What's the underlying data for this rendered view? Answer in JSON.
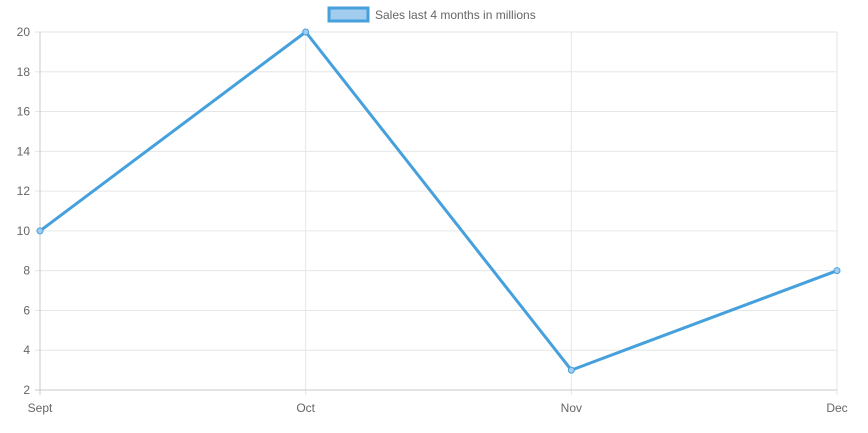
{
  "chart_data": {
    "type": "line",
    "categories": [
      "Sept",
      "Oct",
      "Nov",
      "Dec"
    ],
    "series": [
      {
        "name": "Sales last 4 months in millions",
        "values": [
          10,
          20,
          3,
          8
        ]
      }
    ],
    "y_ticks": [
      2,
      4,
      6,
      8,
      10,
      12,
      14,
      16,
      18,
      20
    ],
    "ylim": [
      2,
      20
    ],
    "grid": true,
    "legend_position": "top-center",
    "colors": {
      "line": "#45a0dc",
      "legend_fill": "#a3cdef",
      "grid": "#e6e6e6",
      "axis": "#c8c8c8"
    }
  }
}
